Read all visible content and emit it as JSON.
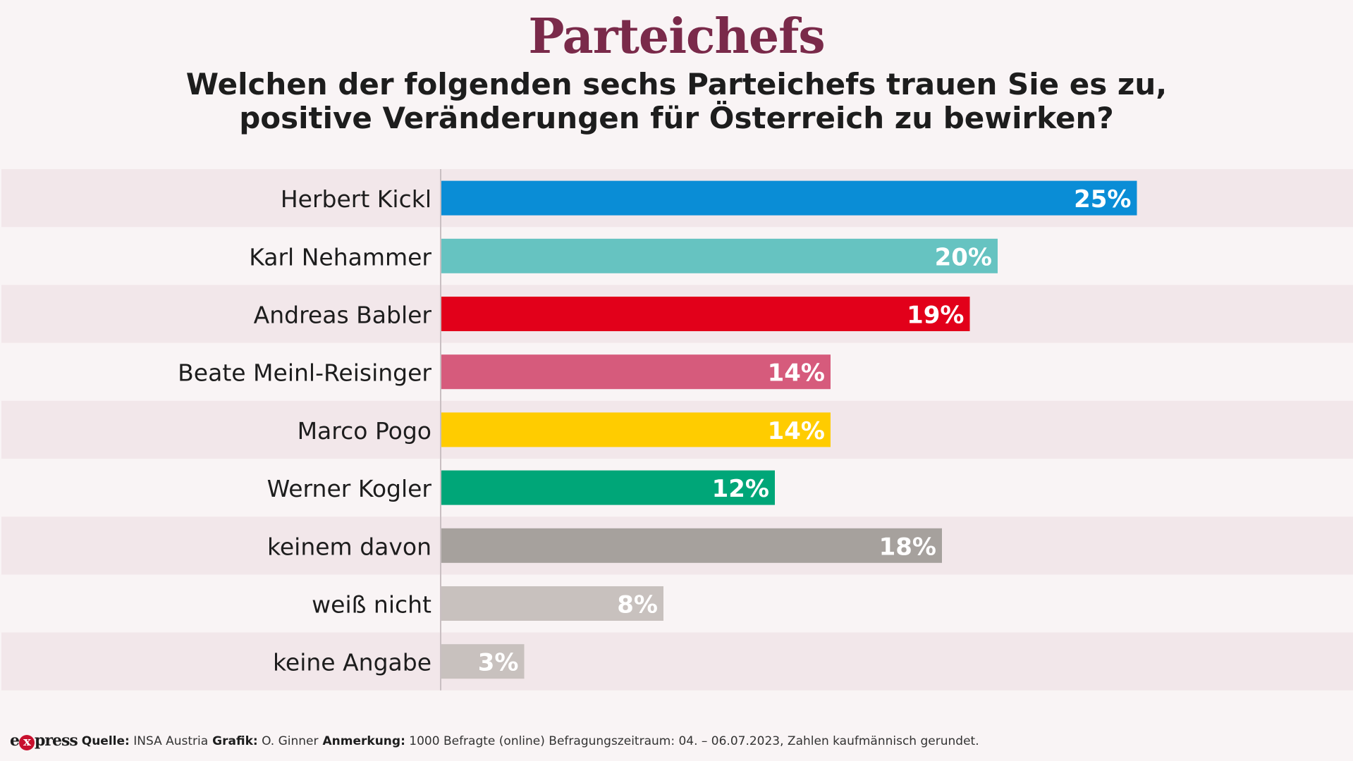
{
  "chart_data": {
    "type": "bar",
    "orientation": "horizontal",
    "title": "Parteichefs",
    "subtitle_lines": [
      "Welchen der folgenden sechs Parteichefs trauen Sie es zu,",
      "positive Veränderungen für Österreich zu bewirken?"
    ],
    "categories": [
      "Herbert Kickl",
      "Karl Nehammer",
      "Andreas Babler",
      "Beate Meinl-Reisinger",
      "Marco Pogo",
      "Werner Kogler",
      "keinem davon",
      "weiß nicht",
      "keine Angabe"
    ],
    "values": [
      25,
      20,
      19,
      14,
      14,
      12,
      18,
      8,
      3
    ],
    "value_labels": [
      "25%",
      "20%",
      "19%",
      "14%",
      "14%",
      "12%",
      "18%",
      "8%",
      "3%"
    ],
    "colors": [
      "#0a8dd6",
      "#66c3c1",
      "#e2001a",
      "#d65b7c",
      "#ffcc00",
      "#00a678",
      "#a6a19d",
      "#c8c1be",
      "#c8c1be"
    ],
    "unit": "%",
    "xlim": [
      0,
      40
    ],
    "grid": false,
    "legend": "none"
  },
  "footer": {
    "logo_prefix": "e",
    "logo_x": "x",
    "logo_suffix": "press",
    "source_label": "Quelle:",
    "source_value": "INSA Austria",
    "graphic_label": "Grafik:",
    "graphic_value": "O. Ginner",
    "note_label": "Anmerkung:",
    "note_value": "1000 Befragte (online) Befragungszeitraum: 04. – 06.07.2023, Zahlen kaufmännisch gerundet."
  },
  "colors": {
    "background": "#f9f4f5",
    "band": "#f2e7ea",
    "title": "#7a2a4a",
    "label": "#1d1d1d",
    "axis": "#c9bfc2"
  }
}
